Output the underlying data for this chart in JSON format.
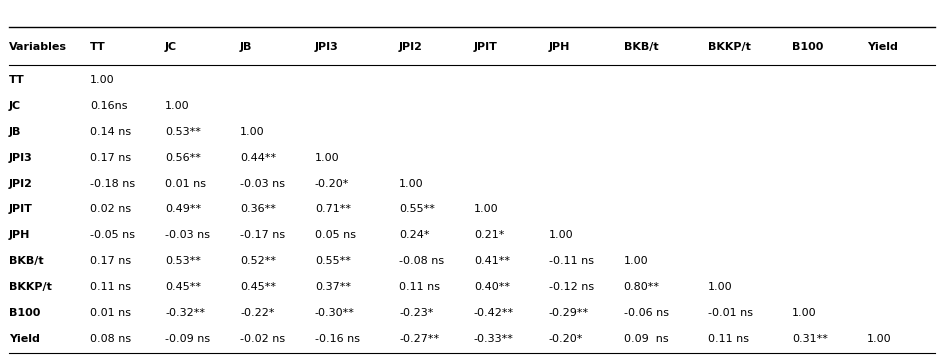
{
  "columns": [
    "Variables",
    "TT",
    "JC",
    "JB",
    "JPI3",
    "JPI2",
    "JPIT",
    "JPH",
    "BKB/t",
    "BKKP/t",
    "B100",
    "Yield"
  ],
  "rows": [
    [
      "TT",
      "1.00",
      "",
      "",
      "",
      "",
      "",
      "",
      "",
      "",
      "",
      ""
    ],
    [
      "JC",
      "0.16ns",
      "1.00",
      "",
      "",
      "",
      "",
      "",
      "",
      "",
      "",
      ""
    ],
    [
      "JB",
      "0.14 ns",
      "0.53**",
      "1.00",
      "",
      "",
      "",
      "",
      "",
      "",
      "",
      ""
    ],
    [
      "JPI3",
      "0.17 ns",
      "0.56**",
      "0.44**",
      "1.00",
      "",
      "",
      "",
      "",
      "",
      "",
      ""
    ],
    [
      "JPI2",
      "-0.18 ns",
      "0.01 ns",
      "-0.03 ns",
      "-0.20*",
      "1.00",
      "",
      "",
      "",
      "",
      "",
      ""
    ],
    [
      "JPIT",
      "0.02 ns",
      "0.49**",
      "0.36**",
      "0.71**",
      "0.55**",
      "1.00",
      "",
      "",
      "",
      "",
      ""
    ],
    [
      "JPH",
      "-0.05 ns",
      "-0.03 ns",
      "-0.17 ns",
      "0.05 ns",
      "0.24*",
      "0.21*",
      "1.00",
      "",
      "",
      "",
      ""
    ],
    [
      "BKB/t",
      "0.17 ns",
      "0.53**",
      "0.52**",
      "0.55**",
      "-0.08 ns",
      "0.41**",
      "-0.11 ns",
      "1.00",
      "",
      "",
      ""
    ],
    [
      "BKKP/t",
      "0.11 ns",
      "0.45**",
      "0.45**",
      "0.37**",
      "0.11 ns",
      "0.40**",
      "-0.12 ns",
      "0.80**",
      "1.00",
      "",
      ""
    ],
    [
      "B100",
      "0.01 ns",
      "-0.32**",
      "-0.22*",
      "-0.30**",
      "-0.23*",
      "-0.42**",
      "-0.29**",
      "-0.06 ns",
      "-0.01 ns",
      "1.00",
      ""
    ],
    [
      "Yield",
      "0.08 ns",
      "-0.09 ns",
      "-0.02 ns",
      "-0.16 ns",
      "-0.27**",
      "-0.33**",
      "-0.20*",
      "0.09  ns",
      "0.11 ns",
      "0.31**",
      "1.00"
    ]
  ],
  "font_size": 8.0,
  "fig_width": 9.44,
  "fig_height": 3.64
}
